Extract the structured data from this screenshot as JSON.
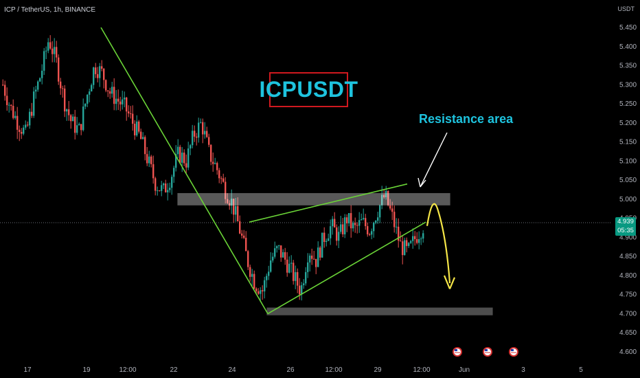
{
  "header": {
    "title": "ICP / TetherUS, 1h, BINANCE",
    "currency": "USDT"
  },
  "annotations": {
    "title_text": "ICPUSDT",
    "resistance_label": "Resistance area"
  },
  "price_tag": {
    "price": "4.939",
    "countdown": "05:35"
  },
  "colors": {
    "background": "#000000",
    "up": "#26a69a",
    "down": "#ef5350",
    "trendline": "#6ad437",
    "arrow": "#f5e647",
    "label": "#1ec3de",
    "title_border": "#d0191f"
  },
  "chart_data": {
    "type": "candlestick",
    "y_axis": {
      "ylim": [
        4.6,
        5.5
      ],
      "tick_labels": [
        "5.450",
        "5.400",
        "5.350",
        "5.300",
        "5.250",
        "5.200",
        "5.150",
        "5.100",
        "5.050",
        "5.000",
        "4.950",
        "4.900",
        "4.850",
        "4.800",
        "4.750",
        "4.700",
        "4.650",
        "4.600"
      ],
      "ticks": [
        5.45,
        5.4,
        5.35,
        5.3,
        5.25,
        5.2,
        5.15,
        5.1,
        5.05,
        5.0,
        4.95,
        4.9,
        4.85,
        4.8,
        4.75,
        4.7,
        4.65,
        4.6
      ]
    },
    "x_axis": {
      "tick_labels": [
        "17",
        "19",
        "12:00",
        "22",
        "24",
        "26",
        "12:00",
        "29",
        "12:00",
        "Jun",
        "3",
        "5"
      ]
    },
    "current_price": 4.939,
    "price_path": [
      5.3,
      5.24,
      5.2,
      5.17,
      5.26,
      5.33,
      5.42,
      5.36,
      5.26,
      5.2,
      5.18,
      5.27,
      5.35,
      5.33,
      5.28,
      5.26,
      5.24,
      5.2,
      5.16,
      5.1,
      5.04,
      5.02,
      5.06,
      5.12,
      5.1,
      5.17,
      5.2,
      5.12,
      5.08,
      5.03,
      4.99,
      4.92,
      4.84,
      4.78,
      4.76,
      4.84,
      4.87,
      4.84,
      4.8,
      4.76,
      4.87,
      4.84,
      4.9,
      4.93,
      4.9,
      4.95,
      4.92,
      4.94,
      4.92,
      4.97,
      5.01,
      4.95,
      4.88,
      4.86,
      4.9,
      4.93
    ],
    "resistance_zone": [
      4.985,
      5.015
    ],
    "support_zone": [
      4.697,
      4.715
    ],
    "trendlines": [
      {
        "from": {
          "t": "19 12:00",
          "price": 5.45
        },
        "to": {
          "t": "24 12:00",
          "price": 4.7
        }
      },
      {
        "from": {
          "t": "24",
          "price": 4.94
        },
        "to": {
          "t": "30",
          "price": 5.04
        }
      },
      {
        "from": {
          "t": "25",
          "price": 4.7
        },
        "to": {
          "t": "31",
          "price": 4.94
        }
      }
    ],
    "projection": {
      "peak": 4.99,
      "target": 4.77
    }
  }
}
